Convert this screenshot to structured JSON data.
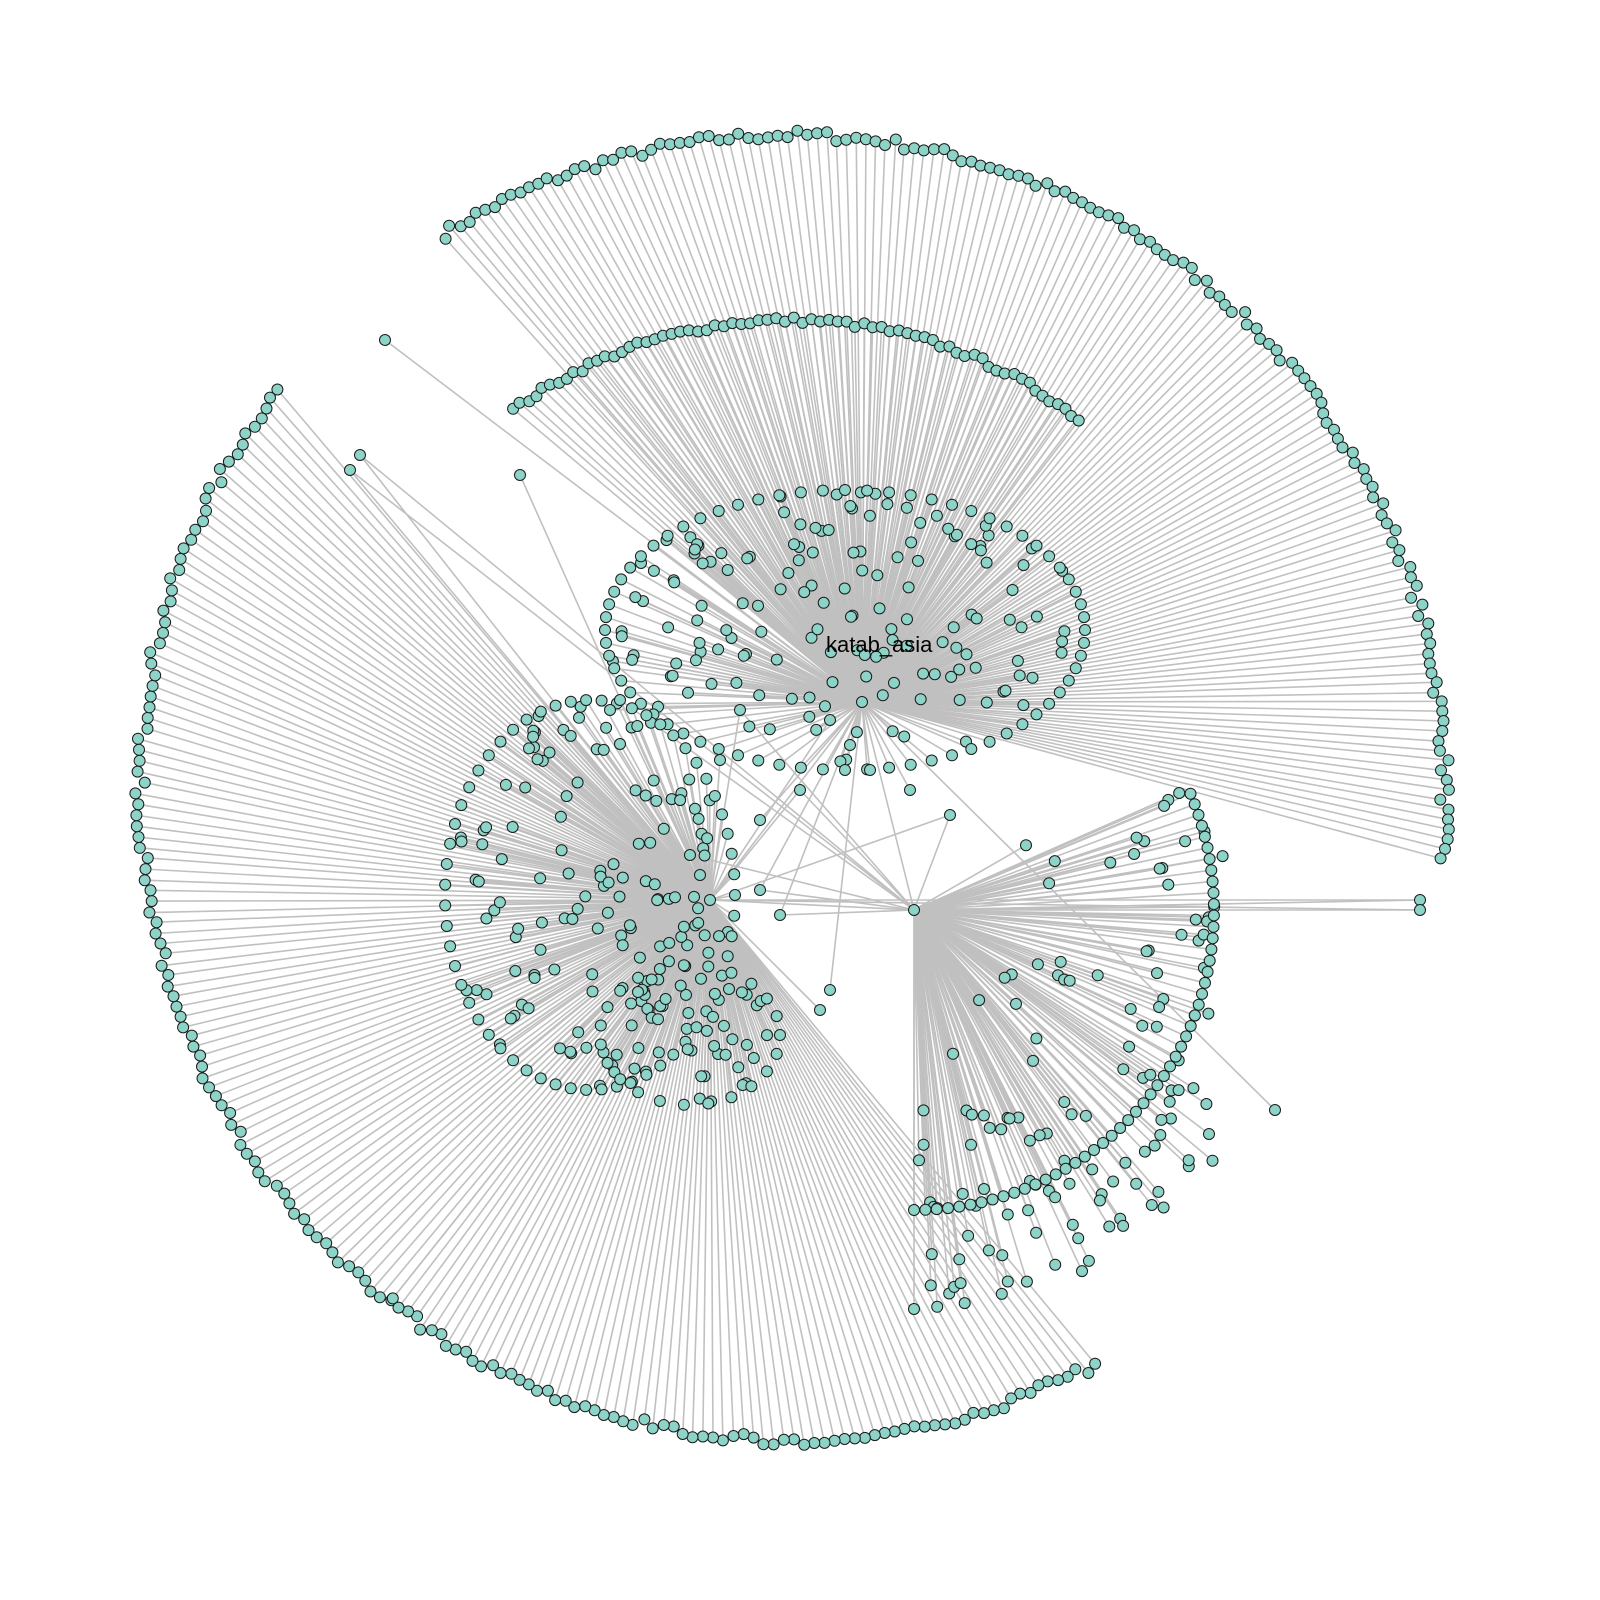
{
  "graph": {
    "title": "",
    "labels": {
      "central_account": "katab_asia"
    },
    "colors": {
      "background": "#ffffff",
      "node_fill": "#8dd3c7",
      "node_stroke": "#1a1a1a",
      "edge": "#c0c0c0",
      "label": "#000000"
    }
  }
}
